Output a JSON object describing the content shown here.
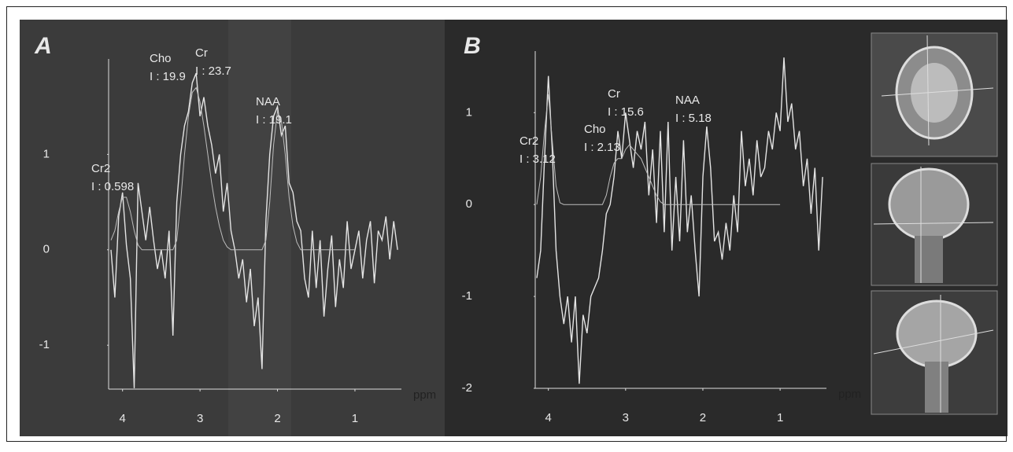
{
  "chart_data": [
    {
      "type": "line",
      "title": "A",
      "xlabel": "ppm",
      "xlim": [
        4.18,
        0.4
      ],
      "ylim": [
        -1.46,
        2.0
      ],
      "xticks": [
        4,
        3,
        2,
        1
      ],
      "yticks": [
        -1,
        0,
        1
      ],
      "x": [
        4.15,
        4.1,
        4.05,
        4.0,
        3.95,
        3.9,
        3.85,
        3.8,
        3.75,
        3.7,
        3.65,
        3.6,
        3.55,
        3.5,
        3.45,
        3.4,
        3.35,
        3.3,
        3.25,
        3.2,
        3.15,
        3.1,
        3.05,
        3.0,
        2.95,
        2.9,
        2.85,
        2.8,
        2.75,
        2.7,
        2.65,
        2.6,
        2.55,
        2.5,
        2.45,
        2.4,
        2.35,
        2.3,
        2.25,
        2.2,
        2.15,
        2.1,
        2.05,
        2.0,
        1.95,
        1.9,
        1.85,
        1.8,
        1.75,
        1.7,
        1.65,
        1.6,
        1.55,
        1.5,
        1.45,
        1.4,
        1.35,
        1.3,
        1.25,
        1.2,
        1.15,
        1.1,
        1.05,
        1.0,
        0.95,
        0.9,
        0.85,
        0.8,
        0.75,
        0.7,
        0.65,
        0.6,
        0.55,
        0.5,
        0.45
      ],
      "series": [
        {
          "color": "#e4e4e4",
          "values": [
            0.0,
            -0.5,
            0.35,
            0.6,
            0.05,
            -0.3,
            -1.45,
            0.7,
            0.4,
            0.1,
            0.45,
            0.1,
            -0.2,
            0.0,
            -0.3,
            0.2,
            -0.9,
            0.5,
            1.0,
            1.3,
            1.45,
            1.75,
            1.85,
            1.4,
            1.6,
            1.3,
            1.1,
            0.8,
            1.0,
            0.4,
            0.7,
            0.2,
            0.0,
            -0.3,
            -0.1,
            -0.55,
            -0.2,
            -0.8,
            -0.5,
            -1.25,
            0.3,
            1.0,
            1.4,
            1.5,
            1.2,
            1.3,
            0.7,
            0.6,
            0.3,
            0.2,
            -0.3,
            -0.5,
            0.2,
            -0.4,
            0.1,
            -0.7,
            -0.2,
            0.15,
            -0.6,
            -0.1,
            -0.4,
            0.3,
            -0.2,
            0.0,
            0.2,
            -0.3,
            0.1,
            0.3,
            -0.35,
            0.2,
            0.1,
            0.35,
            -0.1,
            0.3,
            0.0
          ]
        },
        {
          "color": "#bdbdbd",
          "values": [
            0.1,
            0.2,
            0.4,
            0.55,
            0.55,
            0.4,
            0.2,
            0.05,
            0,
            0,
            0,
            0,
            0,
            0,
            0,
            0,
            0,
            0.1,
            0.5,
            1.0,
            1.4,
            1.65,
            1.7,
            1.55,
            1.3,
            1.0,
            0.7,
            0.45,
            0.25,
            0.1,
            0.03,
            0,
            0,
            0,
            0,
            0,
            0,
            0,
            0,
            0,
            0.1,
            0.5,
            1.1,
            1.45,
            1.35,
            1.0,
            0.55,
            0.25,
            0.08,
            0,
            0,
            0,
            0,
            0,
            0,
            0,
            0,
            0,
            0,
            0,
            0,
            0,
            0,
            0,
            null,
            null,
            null,
            null,
            null,
            null,
            null,
            null,
            null,
            null,
            null
          ]
        }
      ],
      "annotations": [
        [
          "Cr2",
          "I : 0.598"
        ],
        [
          "Cho",
          "I : 19.9"
        ],
        [
          "Cr",
          "I : 23.7"
        ],
        [
          "NAA",
          "I : 19.1"
        ]
      ]
    },
    {
      "type": "line",
      "title": "B",
      "xlabel": "ppm",
      "xlim": [
        4.17,
        0.4
      ],
      "ylim": [
        -2.0,
        1.67
      ],
      "xticks": [
        4,
        3,
        2,
        1
      ],
      "yticks": [
        -2,
        -1,
        0,
        1
      ],
      "x": [
        4.15,
        4.1,
        4.05,
        4.0,
        3.95,
        3.9,
        3.85,
        3.8,
        3.75,
        3.7,
        3.65,
        3.6,
        3.55,
        3.5,
        3.45,
        3.4,
        3.35,
        3.3,
        3.25,
        3.2,
        3.15,
        3.1,
        3.05,
        3.0,
        2.95,
        2.9,
        2.85,
        2.8,
        2.75,
        2.7,
        2.65,
        2.6,
        2.55,
        2.5,
        2.45,
        2.4,
        2.35,
        2.3,
        2.25,
        2.2,
        2.15,
        2.1,
        2.05,
        2.0,
        1.95,
        1.9,
        1.85,
        1.8,
        1.75,
        1.7,
        1.65,
        1.6,
        1.55,
        1.5,
        1.45,
        1.4,
        1.35,
        1.3,
        1.25,
        1.2,
        1.15,
        1.1,
        1.05,
        1.0,
        0.95,
        0.9,
        0.85,
        0.8,
        0.75,
        0.7,
        0.65,
        0.6,
        0.55,
        0.5,
        0.45
      ],
      "series": [
        {
          "color": "#e4e4e4",
          "values": [
            -0.8,
            -0.5,
            0.5,
            1.4,
            0.6,
            -0.5,
            -1.0,
            -1.3,
            -1.0,
            -1.5,
            -1.0,
            -1.95,
            -1.2,
            -1.4,
            -1.0,
            -0.9,
            -0.8,
            -0.5,
            -0.1,
            0.0,
            0.3,
            0.8,
            0.5,
            1.0,
            0.7,
            0.4,
            0.8,
            0.6,
            0.9,
            0.1,
            0.6,
            -0.2,
            0.8,
            -0.3,
            0.9,
            -0.5,
            0.3,
            -0.4,
            0.7,
            -0.3,
            0.1,
            -0.5,
            -1.0,
            0.3,
            0.85,
            0.4,
            -0.4,
            -0.3,
            -0.6,
            -0.2,
            -0.5,
            0.1,
            -0.3,
            0.8,
            0.2,
            0.5,
            0.1,
            0.7,
            0.3,
            0.4,
            0.8,
            0.6,
            1.0,
            0.8,
            1.6,
            0.9,
            1.1,
            0.6,
            0.8,
            0.2,
            0.5,
            -0.1,
            0.4,
            -0.5,
            0.3
          ]
        },
        {
          "color": "#bdbdbd",
          "values": [
            0.0,
            0.3,
            0.8,
            1.2,
            0.7,
            0.2,
            0.02,
            0,
            0,
            0,
            0,
            0,
            0,
            0,
            0,
            0,
            0,
            0,
            0.1,
            0.3,
            0.45,
            0.5,
            0.5,
            0.6,
            0.65,
            0.6,
            0.55,
            0.5,
            0.4,
            0.3,
            0.2,
            0.1,
            0.03,
            0,
            0,
            0,
            0,
            0,
            0,
            0,
            0,
            0,
            0,
            0,
            0,
            0,
            0,
            0,
            0,
            0,
            0,
            0,
            0,
            0,
            0,
            0,
            0,
            0,
            0,
            0,
            0,
            0,
            0,
            0,
            null,
            null,
            null,
            null,
            null,
            null,
            null,
            null,
            null,
            null,
            null
          ]
        }
      ],
      "annotations": [
        [
          "Cr2",
          "I : 3.12"
        ],
        [
          "Cho",
          "I : 2.13"
        ],
        [
          "Cr",
          "I : 15.6"
        ],
        [
          "NAA",
          "I : 5.18"
        ]
      ]
    }
  ]
}
